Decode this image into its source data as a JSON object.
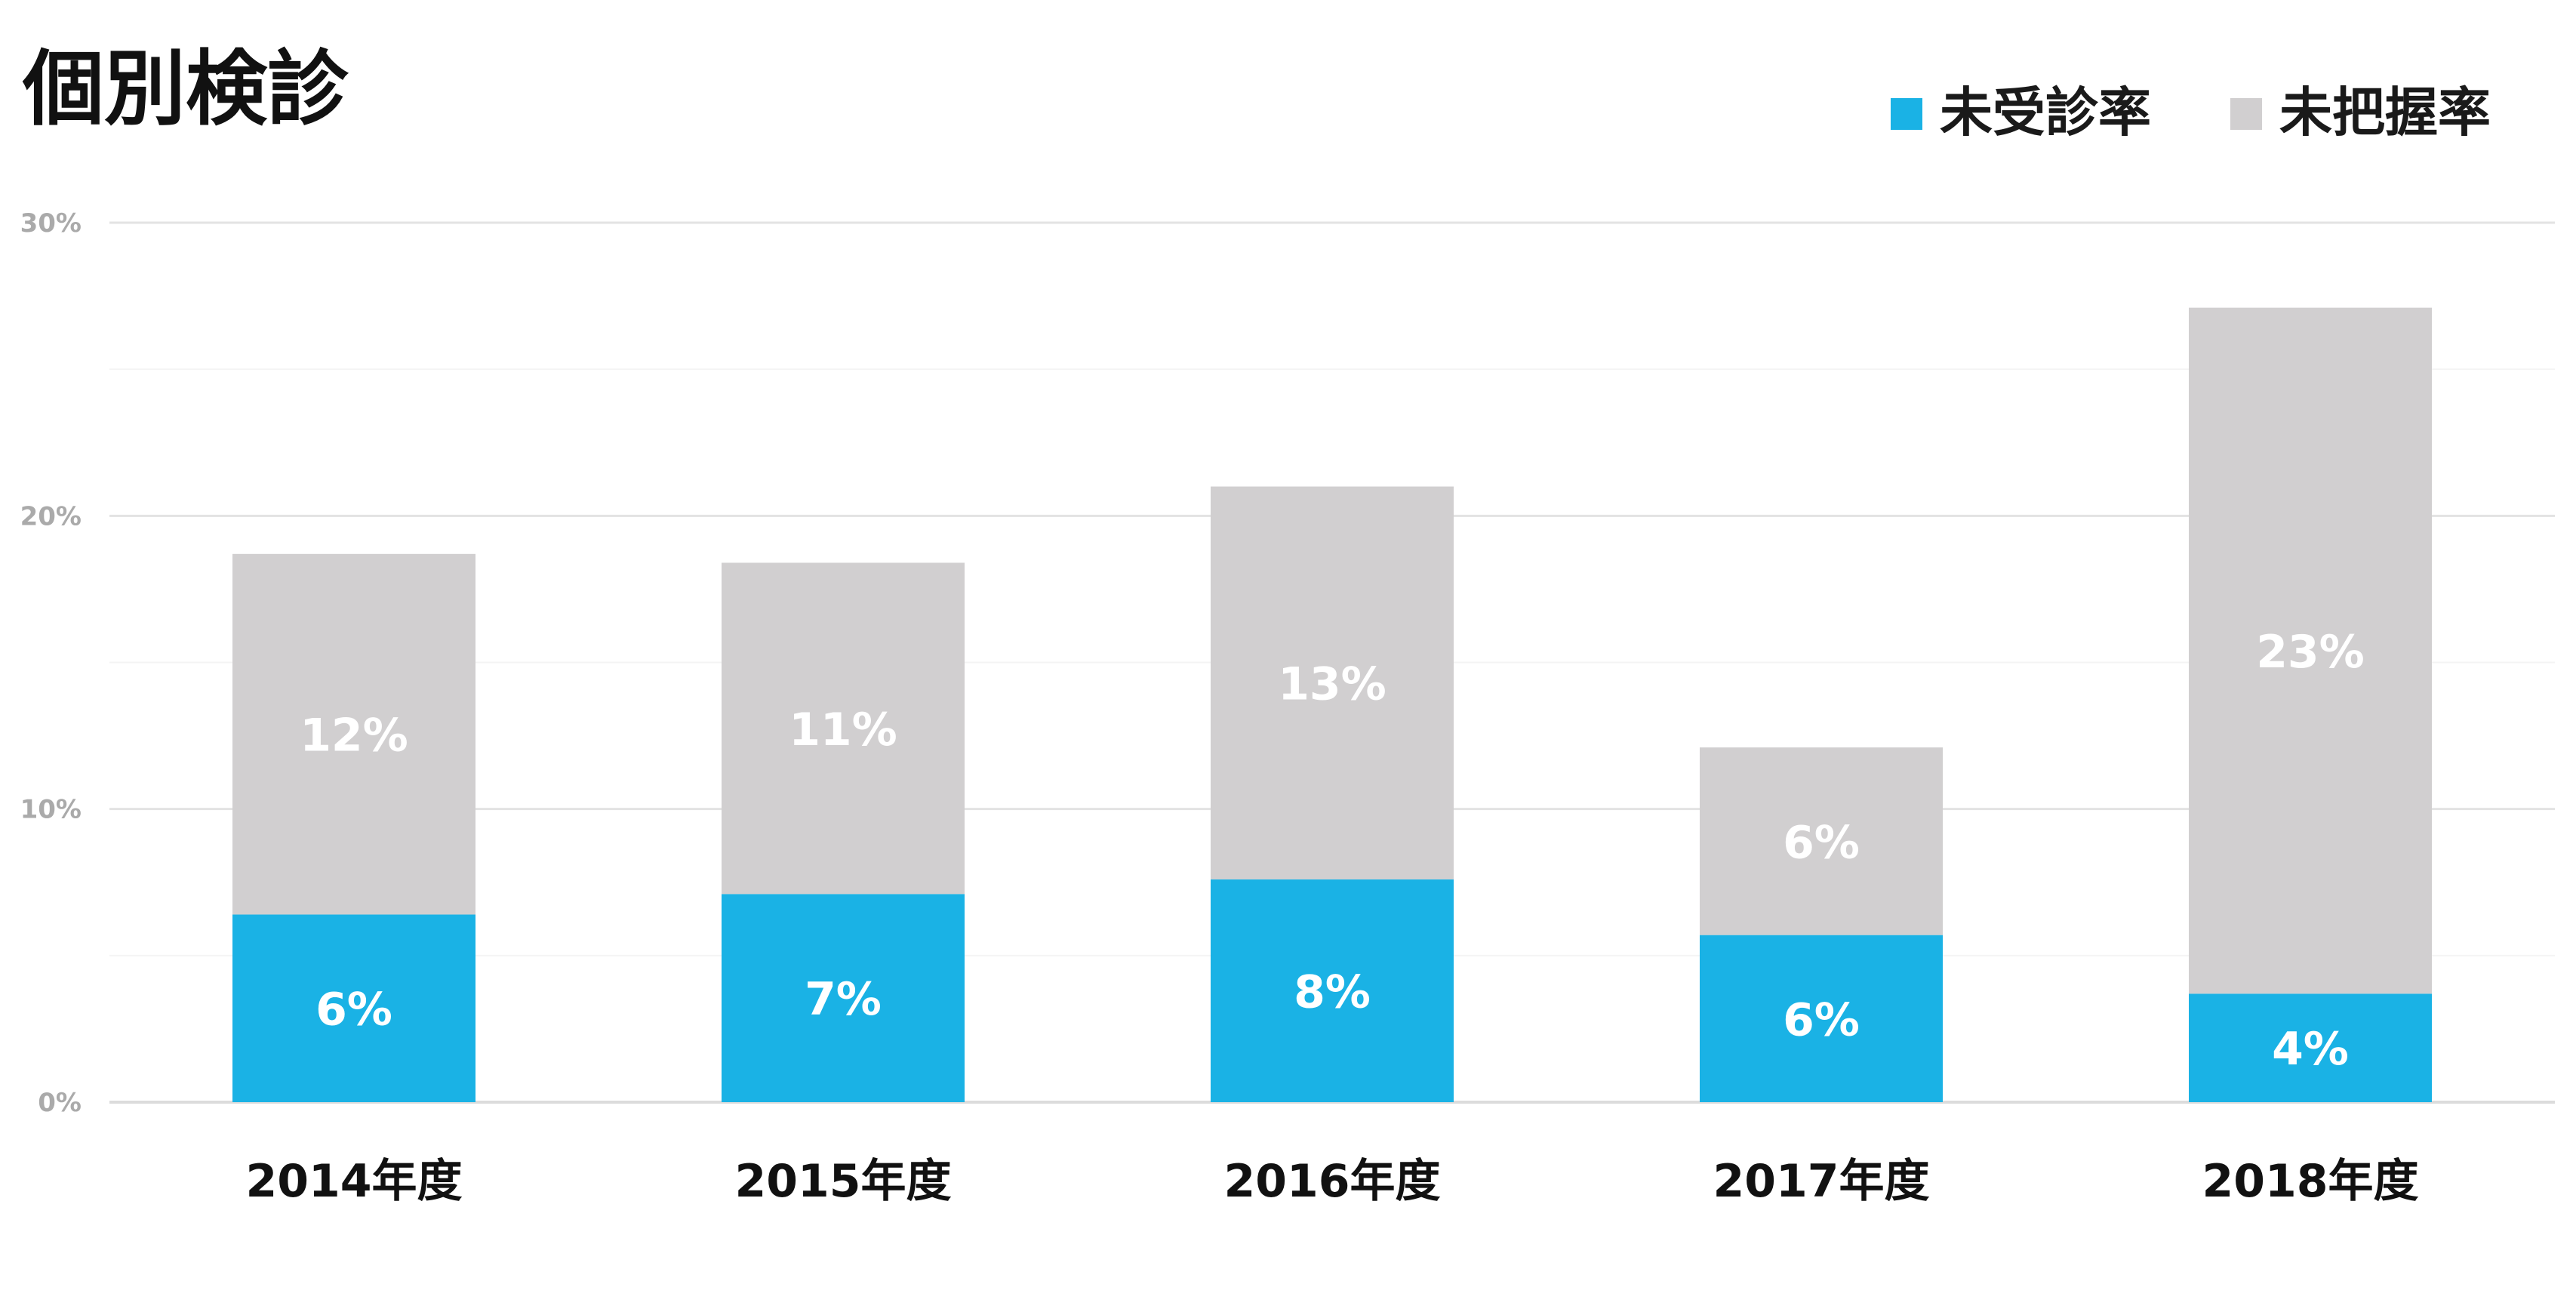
{
  "chart_data": {
    "type": "bar",
    "stacked": true,
    "title": "個別検診",
    "categories": [
      "2014年度",
      "2015年度",
      "2016年度",
      "2017年度",
      "2018年度"
    ],
    "series": [
      {
        "name": "未受診率",
        "color": "#1ab2e5",
        "values": [
          6.4,
          7.1,
          7.6,
          5.7,
          3.7
        ],
        "labels": [
          "6%",
          "7%",
          "8%",
          "6%",
          "4%"
        ]
      },
      {
        "name": "未把握率",
        "color": "#d1cfd0",
        "values": [
          12.3,
          11.3,
          13.4,
          6.4,
          23.4
        ],
        "labels": [
          "12%",
          "11%",
          "13%",
          "6%",
          "23%"
        ]
      }
    ],
    "ylim": [
      0,
      30
    ],
    "yticks": [
      0,
      10,
      20,
      30
    ],
    "ytick_labels": [
      "0%",
      "10%",
      "20%",
      "30%"
    ],
    "grid": true,
    "legend_position": "top-right"
  }
}
